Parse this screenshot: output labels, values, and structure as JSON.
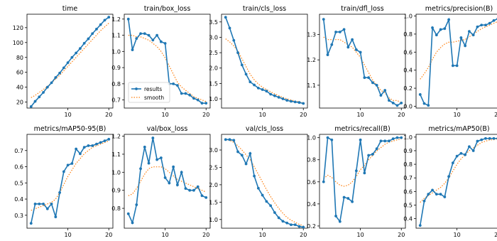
{
  "colors": {
    "results": "#1f77b4",
    "smooth": "#ff7f0e",
    "frame": "#000000"
  },
  "legend": {
    "results": "results",
    "smooth": "smooth",
    "panel": 1,
    "placement": "lower-left"
  },
  "chart_data": [
    {
      "type": "line",
      "title": "time",
      "x": [
        1,
        2,
        3,
        4,
        5,
        6,
        7,
        8,
        9,
        10,
        11,
        12,
        13,
        14,
        15,
        16,
        17,
        18,
        19,
        20
      ],
      "xlim": [
        0,
        21
      ],
      "xticks": [
        10,
        20
      ],
      "ylim": [
        12,
        138
      ],
      "yticks": [
        20,
        40,
        60,
        80,
        100,
        120,
        140
      ],
      "series": [
        {
          "name": "results",
          "values": [
            14,
            21,
            27,
            33,
            40,
            46,
            53,
            59,
            66,
            73,
            80,
            86,
            92,
            99,
            105,
            112,
            118,
            124,
            130,
            134
          ]
        },
        {
          "name": "smooth",
          "values": [
            26,
            29,
            33,
            37,
            41,
            46,
            51,
            56,
            62,
            68,
            74,
            80,
            86,
            92,
            98,
            104,
            110,
            116,
            121,
            126
          ]
        }
      ]
    },
    {
      "type": "line",
      "title": "train/box_loss",
      "x": [
        1,
        2,
        3,
        4,
        5,
        6,
        7,
        8,
        9,
        10,
        11,
        12,
        13,
        14,
        15,
        16,
        17,
        18,
        19,
        20
      ],
      "xlim": [
        0,
        21
      ],
      "xticks": [
        10,
        20
      ],
      "ylim": [
        0.65,
        1.23
      ],
      "yticks": [
        0.7,
        0.8,
        0.9,
        1.0,
        1.1,
        1.2
      ],
      "series": [
        {
          "name": "results",
          "values": [
            1.2,
            1.01,
            1.08,
            1.11,
            1.11,
            1.1,
            1.07,
            1.1,
            1.06,
            1.05,
            0.8,
            0.8,
            0.79,
            0.74,
            0.74,
            0.73,
            0.71,
            0.7,
            0.68,
            0.68
          ]
        },
        {
          "name": "smooth",
          "values": [
            1.1,
            1.1,
            1.09,
            1.09,
            1.08,
            1.07,
            1.05,
            1.03,
            1.0,
            0.96,
            0.91,
            0.86,
            0.81,
            0.78,
            0.76,
            0.74,
            0.72,
            0.71,
            0.7,
            0.69
          ]
        }
      ]
    },
    {
      "type": "line",
      "title": "train/cls_loss",
      "x": [
        1,
        2,
        3,
        4,
        5,
        6,
        7,
        8,
        9,
        10,
        11,
        12,
        13,
        14,
        15,
        16,
        17,
        18,
        19,
        20
      ],
      "xlim": [
        0,
        21
      ],
      "xticks": [
        10,
        20
      ],
      "ylim": [
        0.7,
        3.75
      ],
      "yticks": [
        1.0,
        1.5,
        2.0,
        2.5,
        3.0,
        3.5
      ],
      "series": [
        {
          "name": "results",
          "values": [
            3.65,
            3.3,
            2.9,
            2.5,
            2.1,
            1.8,
            1.55,
            1.45,
            1.35,
            1.3,
            1.25,
            1.15,
            1.1,
            1.05,
            1.0,
            0.95,
            0.92,
            0.9,
            0.88,
            0.85
          ]
        },
        {
          "name": "smooth",
          "values": [
            2.95,
            2.85,
            2.72,
            2.55,
            2.3,
            2.05,
            1.8,
            1.62,
            1.48,
            1.38,
            1.3,
            1.23,
            1.16,
            1.1,
            1.05,
            1.0,
            0.96,
            0.93,
            0.9,
            0.87
          ]
        }
      ]
    },
    {
      "type": "line",
      "title": "train/dfl_loss",
      "x": [
        1,
        2,
        3,
        4,
        5,
        6,
        7,
        8,
        9,
        10,
        11,
        12,
        13,
        14,
        15,
        16,
        17,
        18,
        19,
        20
      ],
      "xlim": [
        0,
        21
      ],
      "xticks": [
        10,
        20
      ],
      "ylim": [
        1.01,
        1.38
      ],
      "yticks": [
        1.1,
        1.2,
        1.3
      ],
      "series": [
        {
          "name": "results",
          "values": [
            1.36,
            1.22,
            1.26,
            1.31,
            1.31,
            1.32,
            1.25,
            1.28,
            1.24,
            1.23,
            1.13,
            1.13,
            1.11,
            1.1,
            1.06,
            1.08,
            1.04,
            1.03,
            1.02,
            1.03
          ]
        },
        {
          "name": "smooth",
          "values": [
            1.29,
            1.28,
            1.28,
            1.28,
            1.28,
            1.27,
            1.26,
            1.25,
            1.23,
            1.21,
            1.18,
            1.15,
            1.12,
            1.1,
            1.08,
            1.07,
            1.05,
            1.04,
            1.04,
            1.03
          ]
        }
      ]
    },
    {
      "type": "line",
      "title": "metrics/precision(B)",
      "x": [
        1,
        2,
        3,
        4,
        5,
        6,
        7,
        8,
        9,
        10,
        11,
        12,
        13,
        14,
        15,
        16,
        17,
        18,
        19,
        20
      ],
      "xlim": [
        0,
        21
      ],
      "xticks": [
        10,
        20
      ],
      "ylim": [
        -0.02,
        1.02
      ],
      "yticks": [
        0.0,
        0.2,
        0.4,
        0.6,
        0.8,
        1.0
      ],
      "series": [
        {
          "name": "results",
          "values": [
            0.13,
            0.03,
            0.01,
            0.87,
            0.79,
            0.85,
            0.86,
            0.96,
            0.45,
            0.45,
            0.76,
            0.67,
            0.83,
            0.79,
            0.88,
            0.9,
            0.9,
            0.92,
            0.95,
            0.97
          ]
        },
        {
          "name": "smooth",
          "values": [
            0.3,
            0.36,
            0.43,
            0.52,
            0.6,
            0.65,
            0.69,
            0.71,
            0.71,
            0.72,
            0.73,
            0.74,
            0.77,
            0.8,
            0.83,
            0.86,
            0.88,
            0.9,
            0.92,
            0.94
          ]
        }
      ]
    },
    {
      "type": "line",
      "title": "metrics/mAP50-95(B)",
      "x": [
        1,
        2,
        3,
        4,
        5,
        6,
        7,
        8,
        9,
        10,
        11,
        12,
        13,
        14,
        15,
        16,
        17,
        18,
        19,
        20
      ],
      "xlim": [
        0,
        21
      ],
      "xticks": [
        10,
        20
      ],
      "ylim": [
        0.22,
        0.8
      ],
      "yticks": [
        0.3,
        0.4,
        0.5,
        0.6,
        0.7
      ],
      "series": [
        {
          "name": "results",
          "values": [
            0.25,
            0.37,
            0.37,
            0.37,
            0.34,
            0.37,
            0.29,
            0.44,
            0.57,
            0.61,
            0.62,
            0.71,
            0.68,
            0.72,
            0.73,
            0.73,
            0.74,
            0.75,
            0.76,
            0.77
          ]
        },
        {
          "name": "smooth",
          "values": [
            0.33,
            0.34,
            0.35,
            0.36,
            0.37,
            0.38,
            0.4,
            0.44,
            0.49,
            0.54,
            0.58,
            0.62,
            0.65,
            0.68,
            0.7,
            0.72,
            0.73,
            0.74,
            0.75,
            0.76
          ]
        }
      ]
    },
    {
      "type": "line",
      "title": "val/box_loss",
      "x": [
        1,
        2,
        3,
        4,
        5,
        6,
        7,
        8,
        9,
        10,
        11,
        12,
        13,
        14,
        15,
        16,
        17,
        18,
        19,
        20
      ],
      "xlim": [
        0,
        21
      ],
      "xticks": [
        10,
        20
      ],
      "ylim": [
        0.69,
        1.21
      ],
      "yticks": [
        0.8,
        0.9,
        1.0,
        1.1,
        1.2
      ],
      "series": [
        {
          "name": "results",
          "values": [
            0.77,
            0.72,
            0.82,
            1.02,
            1.14,
            1.05,
            1.19,
            1.07,
            1.08,
            0.97,
            0.94,
            1.03,
            0.93,
            1.0,
            0.91,
            0.9,
            0.9,
            0.92,
            0.87,
            0.86
          ]
        },
        {
          "name": "smooth",
          "values": [
            0.87,
            0.88,
            0.91,
            0.95,
            0.99,
            1.02,
            1.03,
            1.03,
            1.03,
            1.02,
            1.0,
            0.98,
            0.96,
            0.95,
            0.94,
            0.93,
            0.92,
            0.91,
            0.9,
            0.89
          ]
        }
      ]
    },
    {
      "type": "line",
      "title": "val/cls_loss",
      "x": [
        1,
        2,
        3,
        4,
        5,
        6,
        7,
        8,
        9,
        10,
        11,
        12,
        13,
        14,
        15,
        16,
        17,
        18,
        19,
        20
      ],
      "xlim": [
        0,
        21
      ],
      "xticks": [
        10,
        20
      ],
      "ylim": [
        0.75,
        3.45
      ],
      "yticks": [
        1.0,
        1.5,
        2.0,
        2.5,
        3.0
      ],
      "series": [
        {
          "name": "results",
          "values": [
            3.3,
            3.3,
            3.28,
            2.95,
            2.85,
            2.6,
            2.9,
            2.25,
            1.9,
            1.7,
            1.52,
            1.4,
            1.2,
            1.05,
            0.95,
            0.9,
            0.85,
            0.85,
            0.8,
            0.78
          ]
        },
        {
          "name": "smooth",
          "values": [
            3.3,
            3.28,
            3.22,
            3.12,
            3.0,
            2.86,
            2.72,
            2.52,
            2.3,
            2.08,
            1.86,
            1.66,
            1.48,
            1.32,
            1.18,
            1.06,
            0.98,
            0.92,
            0.86,
            0.82
          ]
        }
      ]
    },
    {
      "type": "line",
      "title": "metrics/recall(B)",
      "x": [
        1,
        2,
        3,
        4,
        5,
        6,
        7,
        8,
        9,
        10,
        11,
        12,
        13,
        14,
        15,
        16,
        17,
        18,
        19,
        20
      ],
      "xlim": [
        0,
        21
      ],
      "xticks": [
        10,
        20
      ],
      "ylim": [
        0.18,
        1.03
      ],
      "yticks": [
        0.2,
        0.4,
        0.6,
        0.8,
        1.0
      ],
      "series": [
        {
          "name": "results",
          "values": [
            0.6,
            1.0,
            0.98,
            0.29,
            0.24,
            0.46,
            0.45,
            0.42,
            0.7,
            0.98,
            0.68,
            0.84,
            0.85,
            0.9,
            0.97,
            0.97,
            0.97,
            0.99,
            1.0,
            1.0
          ]
        },
        {
          "name": "smooth",
          "values": [
            0.63,
            0.66,
            0.64,
            0.6,
            0.57,
            0.56,
            0.57,
            0.6,
            0.65,
            0.71,
            0.75,
            0.8,
            0.84,
            0.88,
            0.91,
            0.94,
            0.96,
            0.97,
            0.98,
            0.99
          ]
        }
      ]
    },
    {
      "type": "line",
      "title": "metrics/mAP50(B)",
      "x": [
        1,
        2,
        3,
        4,
        5,
        6,
        7,
        8,
        9,
        10,
        11,
        12,
        13,
        14,
        15,
        16,
        17,
        18,
        19,
        20
      ],
      "xlim": [
        0,
        21
      ],
      "xticks": [
        10,
        20
      ],
      "ylim": [
        0.33,
        1.02
      ],
      "yticks": [
        0.4,
        0.5,
        0.6,
        0.7,
        0.8,
        0.9,
        1.0
      ],
      "series": [
        {
          "name": "results",
          "values": [
            0.35,
            0.53,
            0.58,
            0.61,
            0.58,
            0.58,
            0.56,
            0.71,
            0.81,
            0.86,
            0.88,
            0.87,
            0.93,
            0.9,
            0.97,
            0.98,
            0.99,
            0.99,
            0.99,
            0.99
          ]
        },
        {
          "name": "smooth",
          "values": [
            0.52,
            0.55,
            0.57,
            0.59,
            0.61,
            0.63,
            0.66,
            0.7,
            0.75,
            0.8,
            0.84,
            0.87,
            0.9,
            0.92,
            0.94,
            0.96,
            0.97,
            0.98,
            0.98,
            0.99
          ]
        }
      ]
    }
  ]
}
